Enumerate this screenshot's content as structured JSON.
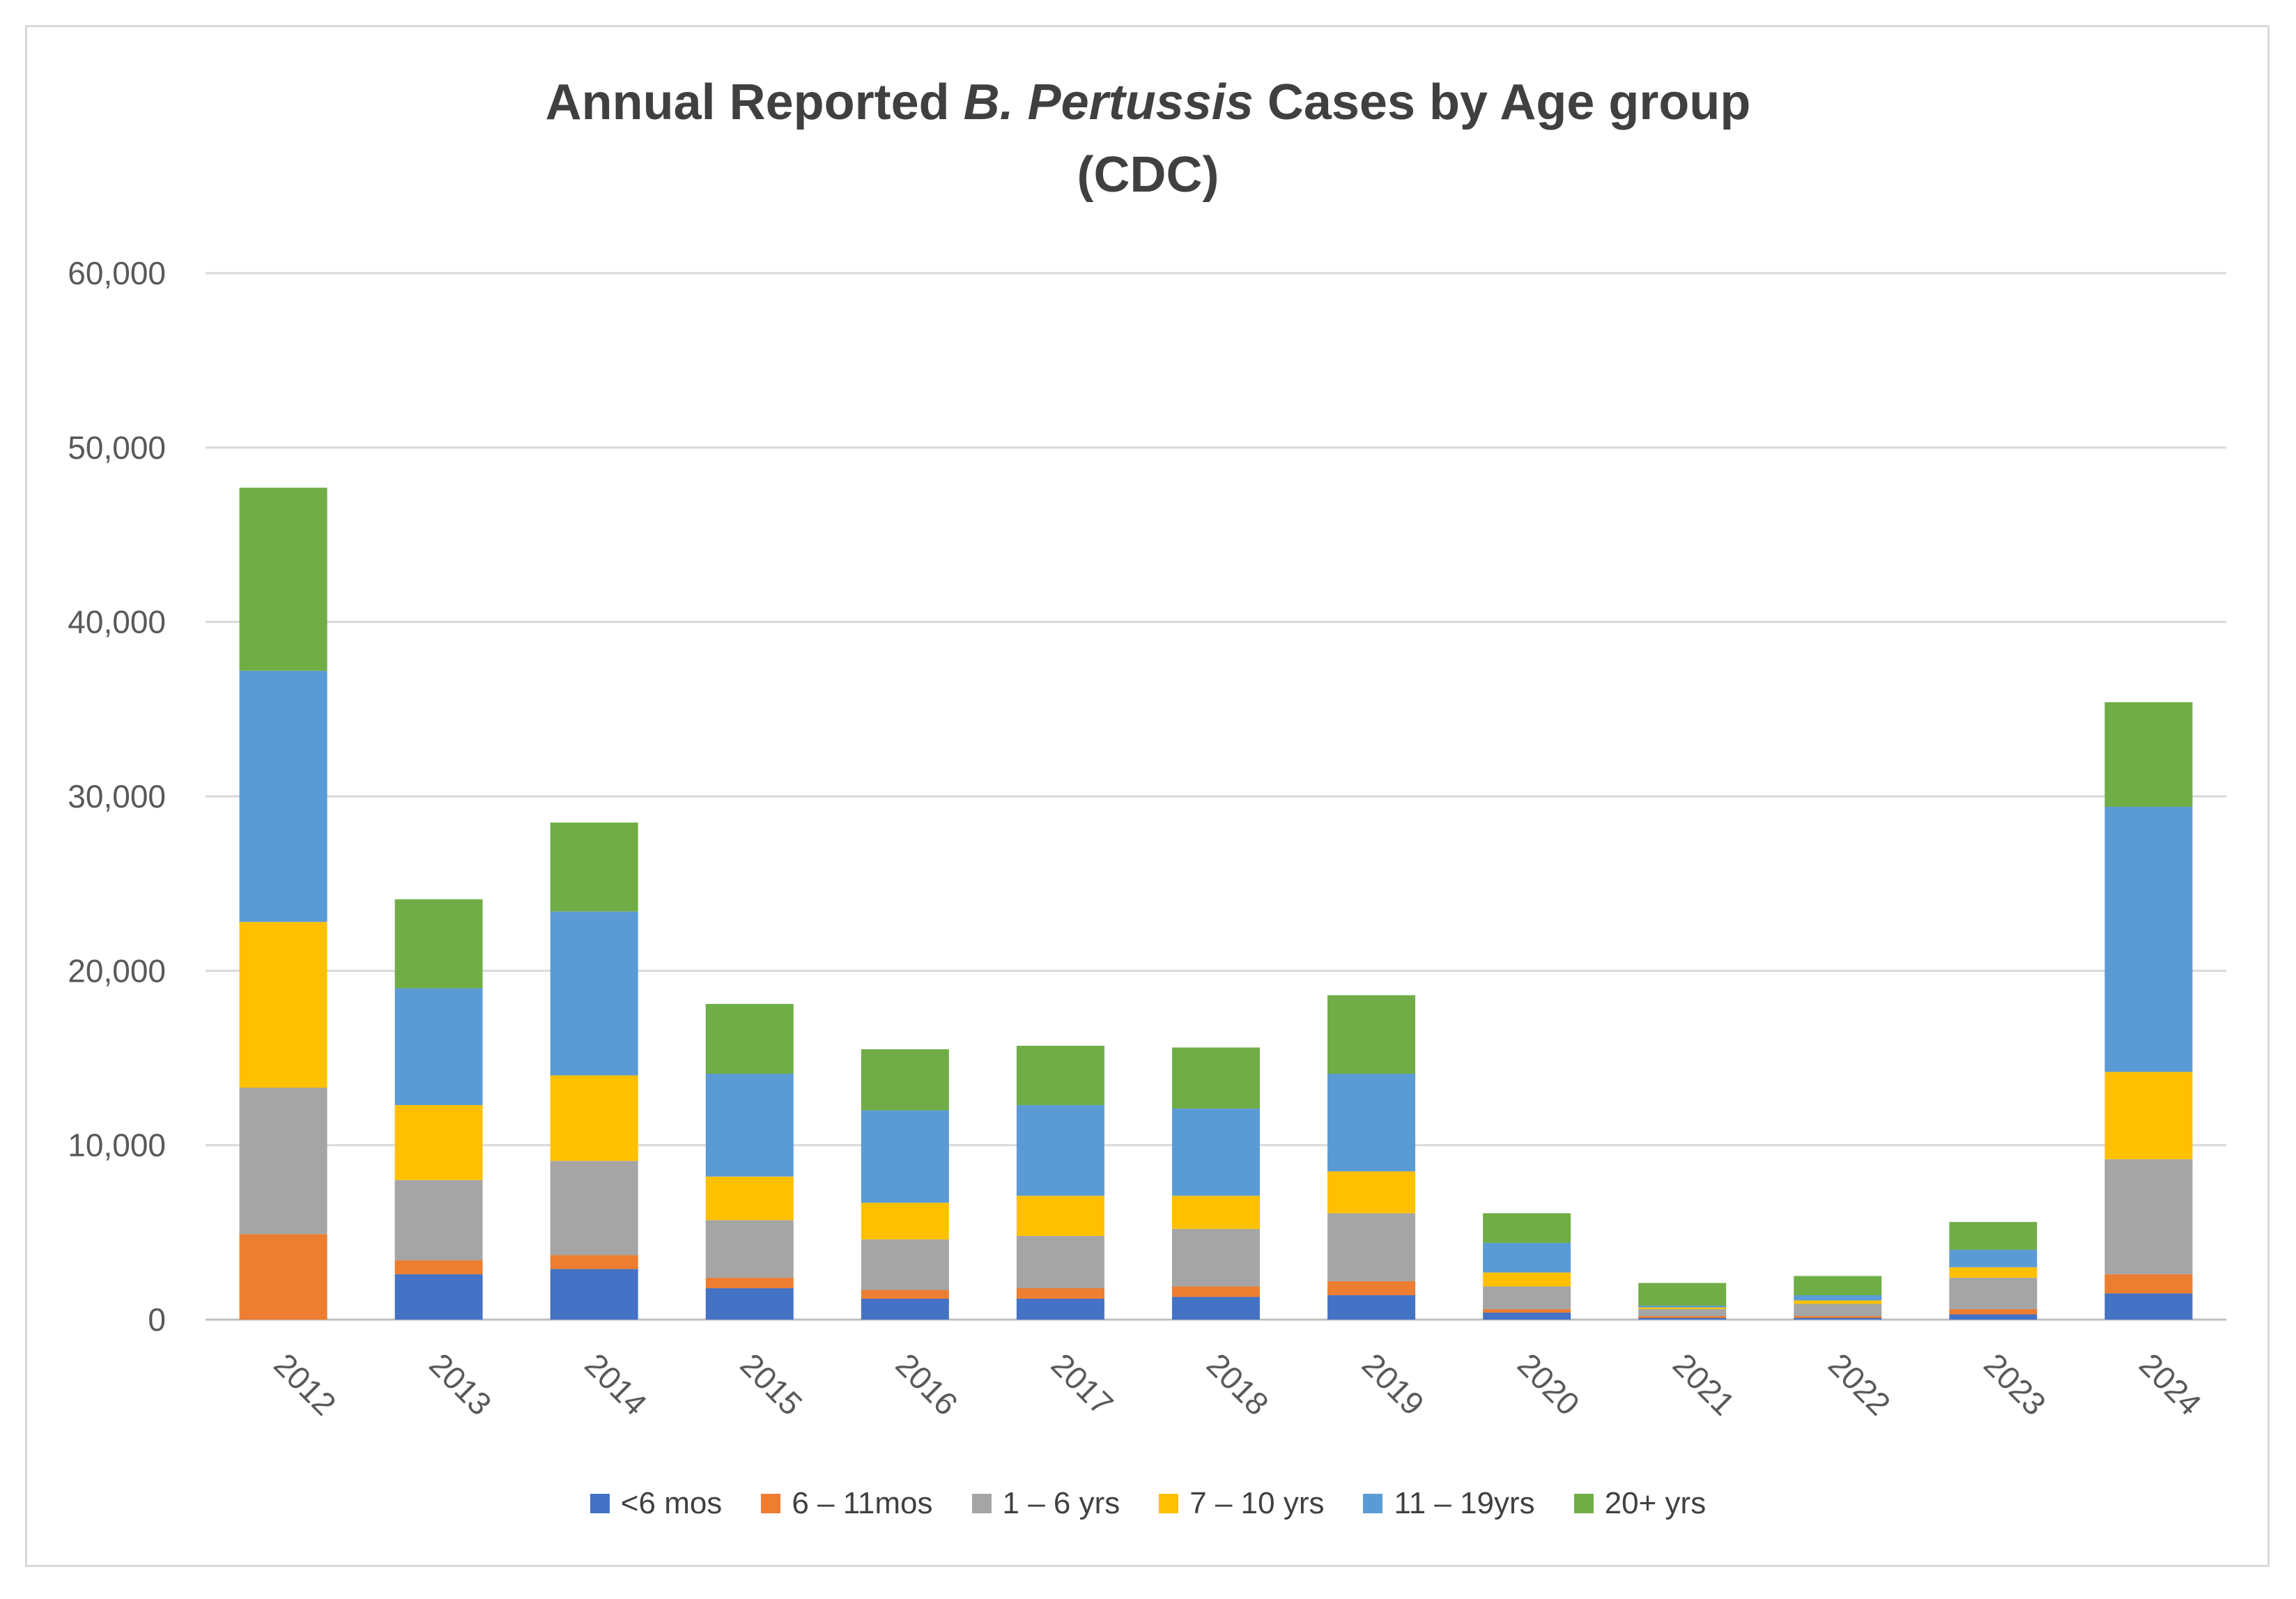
{
  "chart_data": {
    "type": "bar",
    "stacked": true,
    "title": {
      "line1_prefix": "Annual Reported ",
      "line1_italic": "B. Pertussis",
      "line1_suffix": " Cases by Age group",
      "line2": "(CDC)"
    },
    "xlabel": "",
    "ylabel": "",
    "ylim": [
      0,
      60000
    ],
    "yticks": [
      0,
      10000,
      20000,
      30000,
      40000,
      50000,
      60000
    ],
    "ytick_labels": [
      "0",
      "10,000",
      "20,000",
      "30,000",
      "40,000",
      "50,000",
      "60,000"
    ],
    "grid": true,
    "legend_position": "bottom",
    "categories": [
      "2012",
      "2013",
      "2014",
      "2015",
      "2016",
      "2017",
      "2018",
      "2019",
      "2020",
      "2021",
      "2022",
      "2023",
      "2024"
    ],
    "series": [
      {
        "name": "<6 mos",
        "color": "#4472c4",
        "values": [
          0,
          2600,
          2900,
          1800,
          1200,
          1200,
          1300,
          1400,
          400,
          100,
          100,
          300,
          1500
        ]
      },
      {
        "name": "6 – 11mos",
        "color": "#ed7d31",
        "values": [
          4900,
          800,
          800,
          600,
          500,
          600,
          600,
          800,
          200,
          100,
          100,
          300,
          1100
        ]
      },
      {
        "name": "1 – 6 yrs",
        "color": "#a5a5a5",
        "values": [
          8400,
          4600,
          5400,
          3300,
          2900,
          3000,
          3300,
          3900,
          1300,
          400,
          700,
          1800,
          6600
        ]
      },
      {
        "name": "7 – 10 yrs",
        "color": "#ffc000",
        "values": [
          9500,
          4300,
          4900,
          2500,
          2100,
          2300,
          1900,
          2400,
          800,
          100,
          200,
          600,
          5000
        ]
      },
      {
        "name": "11 – 19yrs",
        "color": "#5b9bd5",
        "values": [
          14400,
          6700,
          9400,
          5900,
          5300,
          5200,
          5000,
          5600,
          1700,
          100,
          300,
          1000,
          15200
        ]
      },
      {
        "name": "20+ yrs",
        "color": "#70ad47",
        "values": [
          10500,
          5100,
          5100,
          4000,
          3500,
          3400,
          3500,
          4500,
          1700,
          1300,
          1100,
          1600,
          6000
        ]
      }
    ]
  }
}
